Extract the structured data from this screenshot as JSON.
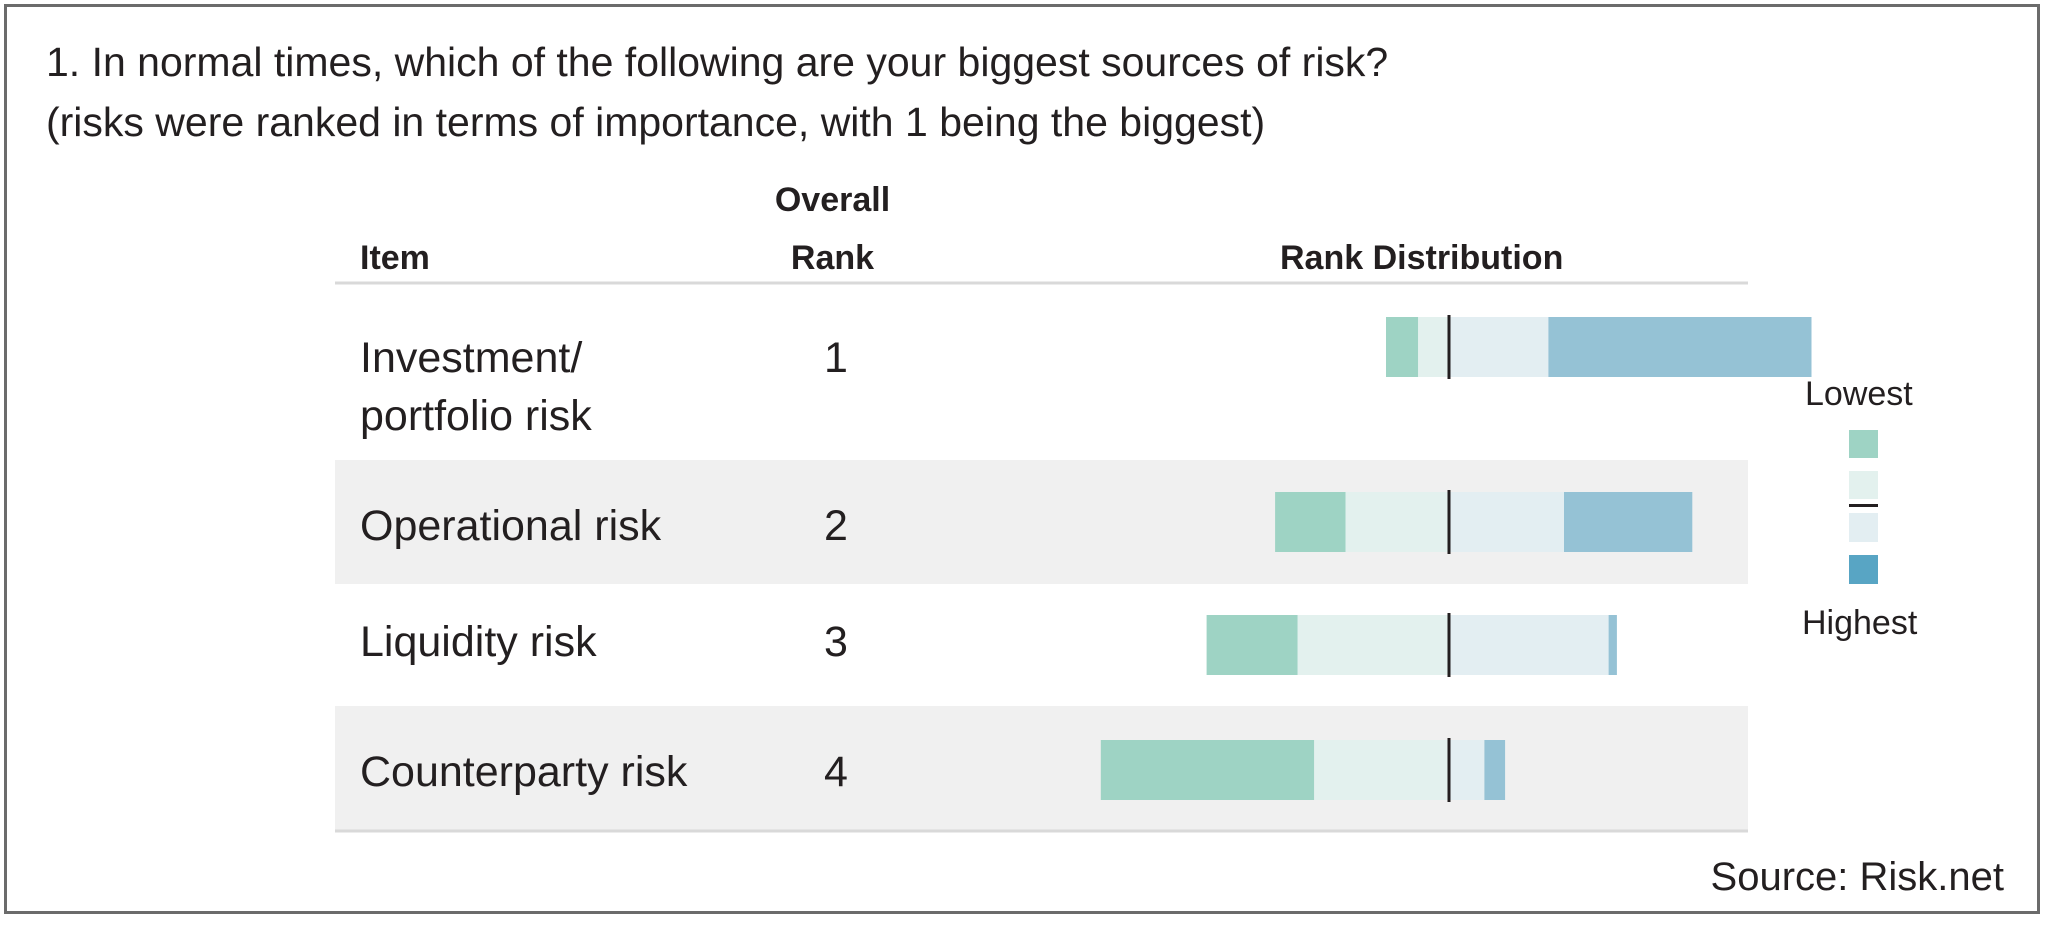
{
  "title_line1": "1. In normal times, which of the following are your biggest sources of risk?",
  "title_line2": "(risks were ranked in terms of importance, with 1 being the biggest)",
  "headers": {
    "item": "Item",
    "rank_line1": "Overall",
    "rank_line2": "Rank",
    "distribution": "Rank Distribution"
  },
  "legend": {
    "top": "Lowest",
    "bottom": "Highest"
  },
  "source": "Source: Risk.net",
  "colors": {
    "seg1": "#9ed3c4",
    "seg2": "#e3f1ee",
    "seg3": "#e3eef2",
    "seg4": "#95c2d5",
    "legend_highest": "#58a5c4",
    "median": "#231f20",
    "band": "#f0f0f0",
    "rule": "#d9d9d9"
  },
  "chart_data": {
    "type": "table",
    "columns": [
      "Item",
      "Overall Rank",
      "Rank Distribution"
    ],
    "rows": [
      {
        "item_line1": "Investment/",
        "item_line2": "portfolio risk",
        "rank": "1",
        "segments": [
          0.07,
          0.067,
          0.216,
          0.572
        ]
      },
      {
        "item_line1": "Operational risk",
        "item_line2": "",
        "rank": "2",
        "segments": [
          0.153,
          0.225,
          0.25,
          0.279
        ]
      },
      {
        "item_line1": "Liquidity risk",
        "item_line2": "",
        "rank": "3",
        "segments": [
          0.198,
          0.329,
          0.347,
          0.018
        ]
      },
      {
        "item_line1": "Counterparty risk",
        "item_line2": "",
        "rank": "4",
        "segments": [
          0.464,
          0.293,
          0.077,
          0.045
        ]
      }
    ],
    "distribution_center": "median",
    "legend_order": [
      "Lowest",
      "Highest"
    ]
  }
}
